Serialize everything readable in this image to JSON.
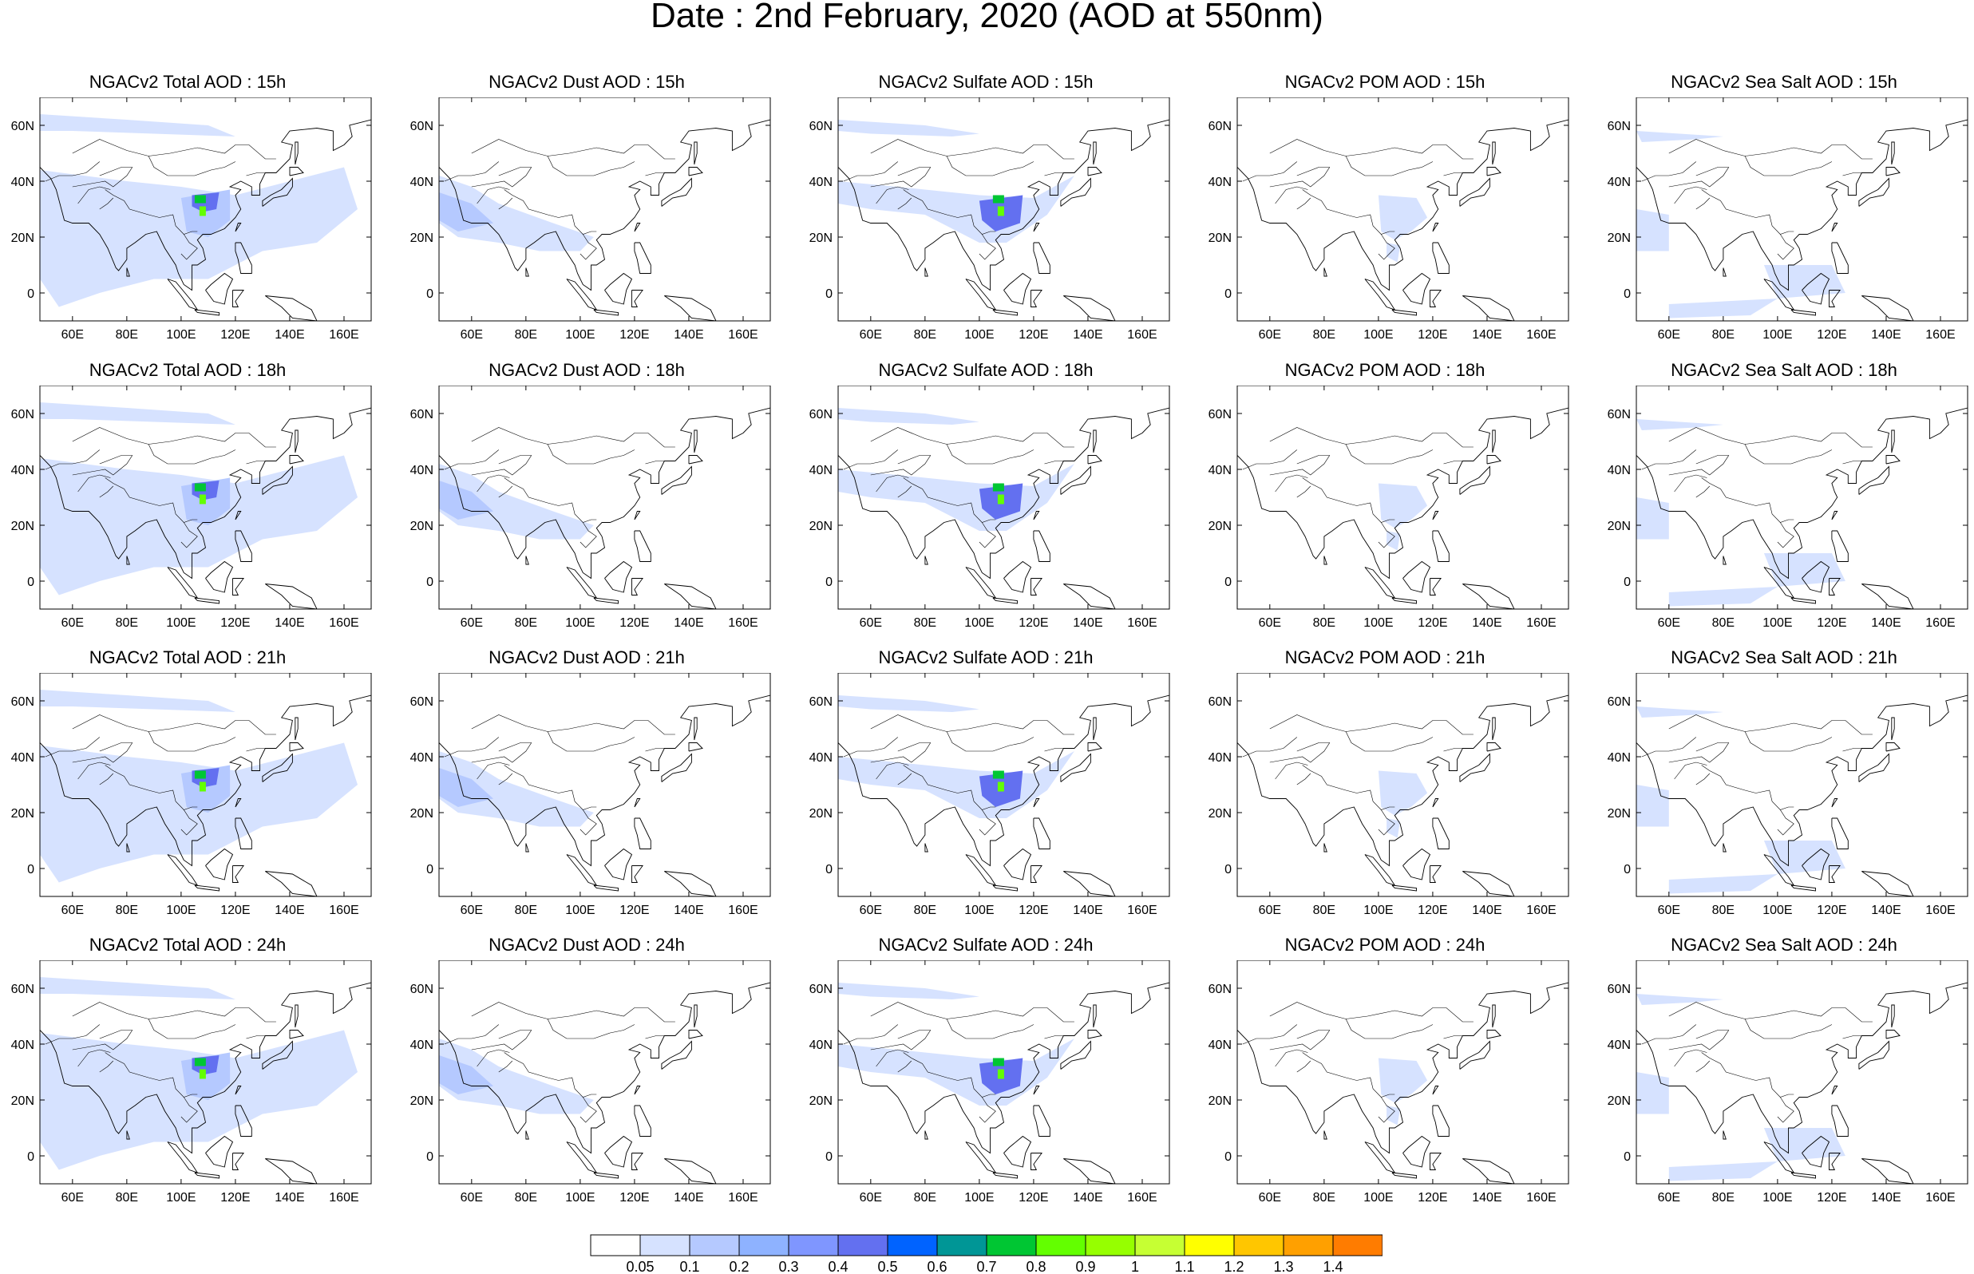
{
  "title": "Date : 2nd February, 2020 (AOD at 550nm)",
  "panels": [
    [
      "NGACv2 Total AOD : 15h",
      "NGACv2 Dust AOD : 15h",
      "NGACv2 Sulfate AOD : 15h",
      "NGACv2 POM AOD : 15h",
      "NGACv2 Sea Salt AOD : 15h"
    ],
    [
      "NGACv2 Total AOD : 18h",
      "NGACv2 Dust AOD : 18h",
      "NGACv2 Sulfate AOD : 18h",
      "NGACv2 POM AOD : 18h",
      "NGACv2 Sea Salt AOD : 18h"
    ],
    [
      "NGACv2 Total AOD : 21h",
      "NGACv2 Dust AOD : 21h",
      "NGACv2 Sulfate AOD : 21h",
      "NGACv2 POM AOD : 21h",
      "NGACv2 Sea Salt AOD : 21h"
    ],
    [
      "NGACv2 Total AOD : 24h",
      "NGACv2 Dust AOD : 24h",
      "NGACv2 Sulfate AOD : 24h",
      "NGACv2 POM AOD : 24h",
      "NGACv2 Sea Salt  AOD : 24h"
    ]
  ],
  "lon_ticks": [
    "60E",
    "80E",
    "100E",
    "120E",
    "140E",
    "160E"
  ],
  "lat_ticks": [
    "60N",
    "40N",
    "20N",
    "0"
  ],
  "extent": {
    "lon": [
      48,
      170
    ],
    "lat": [
      -10,
      70
    ]
  },
  "colorbar": {
    "levels": [
      "0.05",
      "0.1",
      "0.2",
      "0.3",
      "0.4",
      "0.5",
      "0.6",
      "0.7",
      "0.8",
      "0.9",
      "1",
      "1.1",
      "1.2",
      "1.3",
      "1.4"
    ],
    "colors": [
      "#ffffff",
      "#d6e2ff",
      "#b5c9ff",
      "#8eb2ff",
      "#7f96ff",
      "#6370f0",
      "#0063ff",
      "#009696",
      "#00c633",
      "#63ff00",
      "#96ff00",
      "#c6ff33",
      "#ffff00",
      "#ffc600",
      "#ffa000",
      "#ff7c00",
      "#ff1900"
    ]
  }
}
